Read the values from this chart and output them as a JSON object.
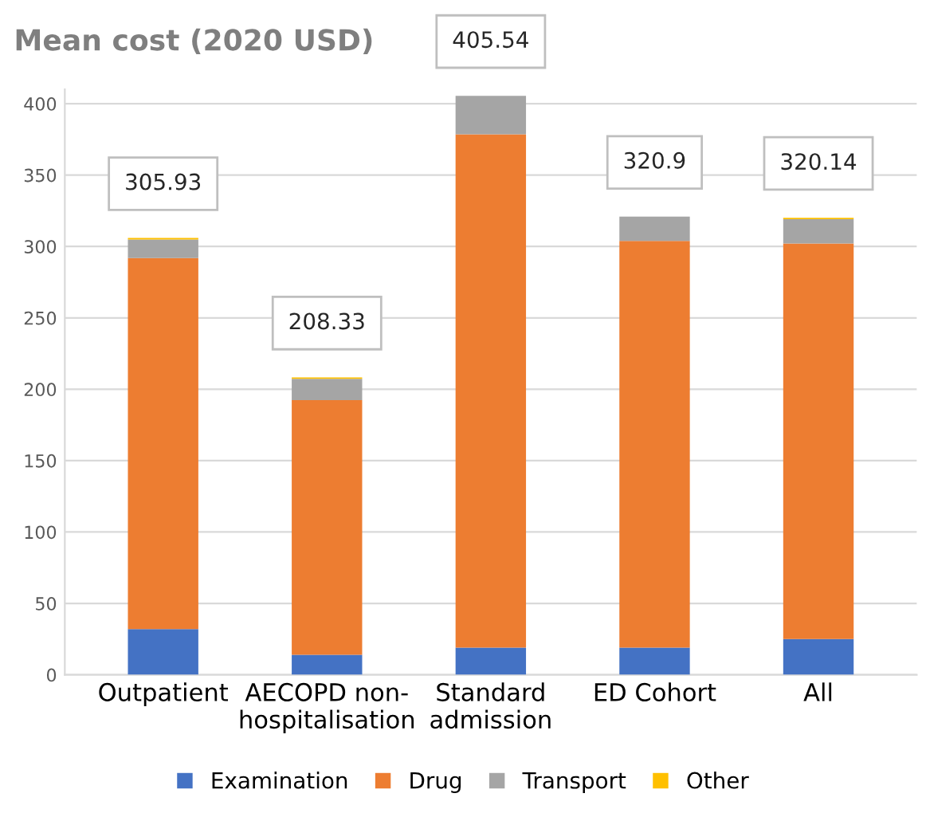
{
  "chart_data": {
    "type": "bar",
    "title": "Mean cost (2020 USD)",
    "stacked": true,
    "categories": [
      "Outpatient",
      "AECOPD non-\nhospitalisation",
      "Standard\nadmission",
      "ED Cohort",
      "All"
    ],
    "series": [
      {
        "name": "Examination",
        "color": "#4472c4",
        "values": [
          32,
          14,
          19,
          19,
          25
        ]
      },
      {
        "name": "Drug",
        "color": "#ed7d31",
        "values": [
          259.93,
          178.33,
          359.54,
          284.9,
          277.14
        ]
      },
      {
        "name": "Transport",
        "color": "#a5a5a5",
        "values": [
          13,
          15,
          27,
          17,
          17
        ]
      },
      {
        "name": "Other",
        "color": "#ffc000",
        "values": [
          1,
          1,
          0,
          0,
          1
        ]
      }
    ],
    "totals": [
      "305.93",
      "208.33",
      "405.54",
      "320.9",
      "320.14"
    ],
    "ylim": [
      0,
      410
    ],
    "yticks": [
      0,
      50,
      100,
      150,
      200,
      250,
      300,
      350,
      400
    ],
    "grid": "y",
    "legend": "bottom"
  }
}
